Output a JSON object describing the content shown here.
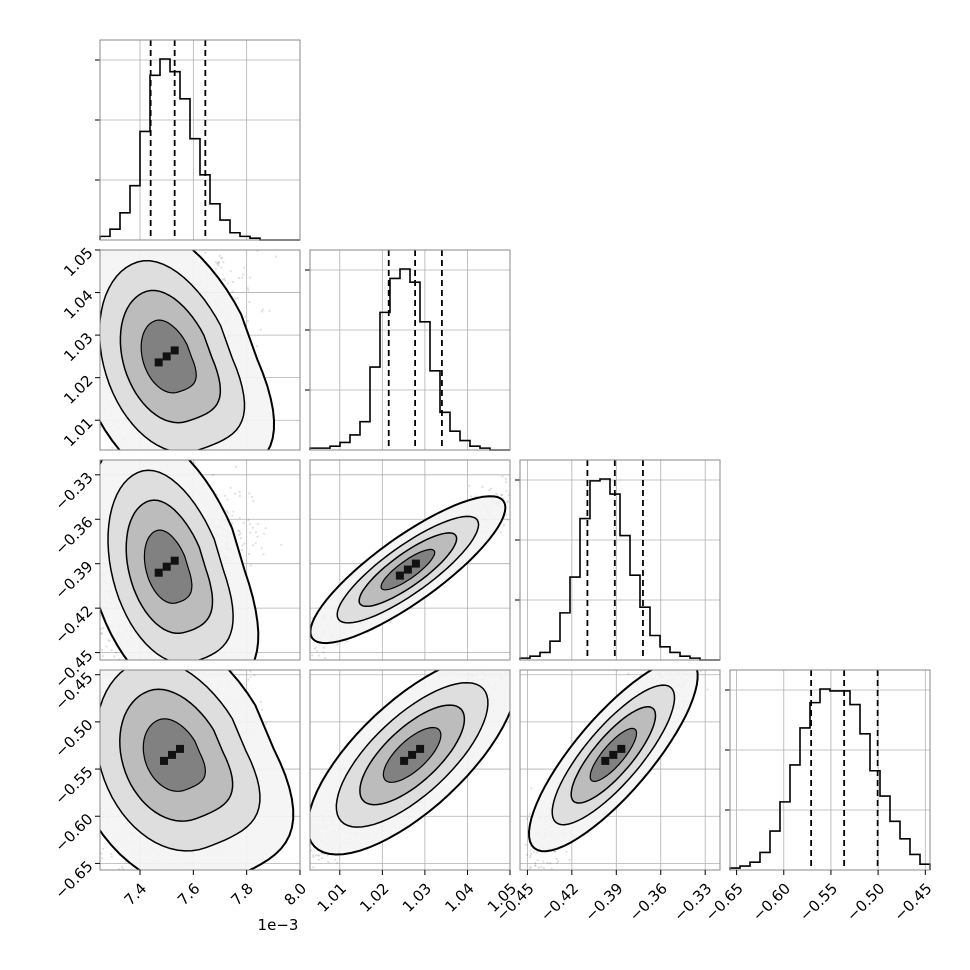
{
  "chart_data": {
    "type": "corner",
    "parameters": 4,
    "grid": true,
    "x_offset_label": "1e−3",
    "ranges": [
      [
        7.25,
        8.0
      ],
      [
        1.003,
        1.05
      ],
      [
        -0.455,
        -0.32
      ],
      [
        -0.657,
        -0.445
      ]
    ],
    "ticks": [
      {
        "values": [
          7.4,
          7.6,
          7.8,
          8.0
        ],
        "labels": [
          "7.4",
          "7.6",
          "7.8",
          "8.0"
        ]
      },
      {
        "values": [
          1.01,
          1.02,
          1.03,
          1.04,
          1.05
        ],
        "labels": [
          "1.01",
          "1.02",
          "1.03",
          "1.04",
          "1.05"
        ]
      },
      {
        "values": [
          -0.45,
          -0.42,
          -0.39,
          -0.36,
          -0.33
        ],
        "labels": [
          "−0.45",
          "−0.42",
          "−0.39",
          "−0.36",
          "−0.33"
        ]
      },
      {
        "values": [
          -0.65,
          -0.6,
          -0.55,
          -0.5,
          -0.45
        ],
        "labels": [
          "−0.65",
          "−0.60",
          "−0.55",
          "−0.50",
          "−0.45"
        ]
      }
    ],
    "quantiles": [
      [
        7.44,
        7.53,
        7.645
      ],
      [
        1.0215,
        1.0277,
        1.034
      ],
      [
        -0.4095,
        -0.391,
        -0.372
      ],
      [
        -0.571,
        -0.536,
        -0.5005
      ]
    ],
    "histograms": [
      {
        "edges": [
          7.25,
          8.0
        ],
        "counts": [
          2,
          6,
          15,
          30,
          60,
          91,
          100,
          93,
          78,
          56,
          36,
          20,
          11,
          4,
          2,
          1,
          0,
          0,
          0,
          0
        ]
      },
      {
        "edges": [
          1.003,
          1.05
        ],
        "counts": [
          1,
          1,
          2,
          4,
          8,
          15,
          44,
          73,
          91,
          96,
          89,
          68,
          42,
          20,
          10,
          5,
          2,
          1,
          0,
          0
        ]
      },
      {
        "edges": [
          -0.455,
          -0.32
        ],
        "counts": [
          1,
          2,
          4,
          10,
          25,
          44,
          75,
          95,
          96,
          88,
          66,
          45,
          28,
          13,
          7,
          4,
          2,
          1,
          0,
          0
        ]
      },
      {
        "edges": [
          -0.657,
          -0.445
        ],
        "counts": [
          1,
          2,
          4,
          9,
          20,
          35,
          54,
          73,
          86,
          93,
          92,
          92,
          85,
          70,
          51,
          38,
          25,
          16,
          8,
          3
        ]
      }
    ],
    "pairs": [
      {
        "x": 0,
        "y": 1,
        "center": [
          7.5,
          1.025
        ],
        "spread": [
          0.13,
          0.011
        ],
        "corr": 0.45,
        "curl": 0.8
      },
      {
        "x": 0,
        "y": 2,
        "center": [
          7.5,
          -0.392
        ],
        "spread": [
          0.13,
          0.025
        ],
        "corr": 0.45,
        "curl": 0.8
      },
      {
        "x": 0,
        "y": 3,
        "center": [
          7.52,
          -0.535
        ],
        "spread": [
          0.13,
          0.06
        ],
        "corr": 0.45,
        "curl": 0.7
      },
      {
        "x": 1,
        "y": 2,
        "center": [
          1.026,
          -0.394
        ],
        "spread": [
          0.012,
          0.026
        ],
        "corr": 0.95,
        "curl": 0
      },
      {
        "x": 1,
        "y": 3,
        "center": [
          1.027,
          -0.535
        ],
        "spread": [
          0.012,
          0.055
        ],
        "corr": 0.92,
        "curl": 0
      },
      {
        "x": 2,
        "y": 3,
        "center": [
          -0.392,
          -0.535
        ],
        "spread": [
          0.028,
          0.055
        ],
        "corr": 0.94,
        "curl": 0
      }
    ]
  }
}
